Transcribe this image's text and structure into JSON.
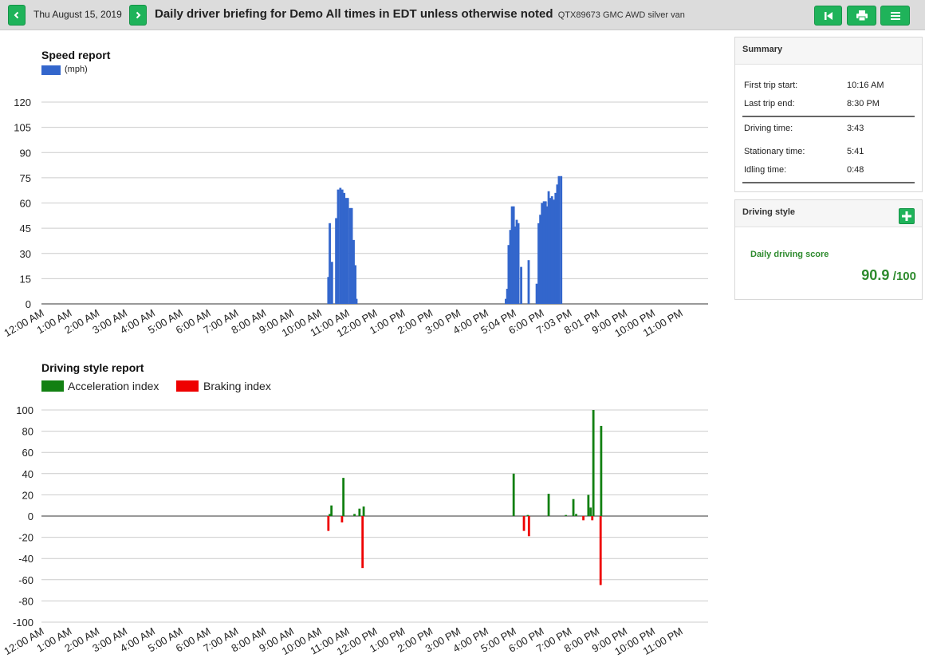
{
  "header": {
    "date": "Thu August 15, 2019",
    "title": "Daily driver briefing for Demo All times in EDT unless otherwise noted",
    "vehicle": "QTX89673 GMC AWD silver van",
    "prev_icon": "chevron-left-icon",
    "next_icon": "chevron-right-icon",
    "buttons": [
      "skip-back-icon",
      "print-icon",
      "menu-icon"
    ],
    "accent_color": "#1fb35a"
  },
  "summary": {
    "title": "Summary",
    "rows": [
      {
        "label": "First trip start:",
        "value": "10:16 AM"
      },
      {
        "label": "Last trip end:",
        "value": "8:30 PM"
      },
      {
        "label": "Driving time:",
        "value": "3:43"
      },
      {
        "label": "Stationary time:",
        "value": "5:41"
      },
      {
        "label": "Idling time:",
        "value": "0:48"
      }
    ]
  },
  "driving_style": {
    "title": "Driving style",
    "score_label": "Daily driving score",
    "score": "90.9",
    "score_max": "/100",
    "add_icon": "plus-icon"
  },
  "chart_data": [
    {
      "type": "bar",
      "title": "Speed report",
      "legend": [
        {
          "name": "(mph)",
          "color": "#3366cc"
        }
      ],
      "ylim": [
        0,
        120
      ],
      "yticks": [
        "120",
        "105",
        "90",
        "75",
        "60",
        "45",
        "30",
        "15",
        "0"
      ],
      "xticks": [
        "12:00 AM",
        "1:00 AM",
        "2:00 AM",
        "3:00 AM",
        "4:00 AM",
        "5:00 AM",
        "6:00 AM",
        "7:00 AM",
        "8:00 AM",
        "9:00 AM",
        "10:00 AM",
        "11:00 AM",
        "12:00 PM",
        "1:00 PM",
        "2:00 PM",
        "3:00 PM",
        "4:00 PM",
        "5:04 PM",
        "6:00 PM",
        "7:03 PM",
        "8:01 PM",
        "9:00 PM",
        "10:00 PM",
        "11:00 PM"
      ],
      "grid": true,
      "series": [
        {
          "name": "(mph)",
          "color": "#3366cc",
          "points": [
            [
              10.33,
              16
            ],
            [
              10.38,
              48
            ],
            [
              10.46,
              25
            ],
            [
              10.61,
              51
            ],
            [
              10.68,
              68
            ],
            [
              10.76,
              69
            ],
            [
              10.83,
              68
            ],
            [
              10.9,
              66
            ],
            [
              10.97,
              63
            ],
            [
              11.03,
              63
            ],
            [
              11.11,
              57
            ],
            [
              11.17,
              57
            ],
            [
              11.24,
              38
            ],
            [
              11.3,
              23
            ],
            [
              11.34,
              3
            ],
            [
              16.72,
              3
            ],
            [
              16.77,
              9
            ],
            [
              16.82,
              35
            ],
            [
              16.88,
              44
            ],
            [
              16.94,
              58
            ],
            [
              17.0,
              58
            ],
            [
              17.06,
              46
            ],
            [
              17.11,
              50
            ],
            [
              17.17,
              48
            ],
            [
              17.27,
              22
            ],
            [
              17.54,
              26
            ],
            [
              17.83,
              12
            ],
            [
              17.9,
              48
            ],
            [
              17.96,
              53
            ],
            [
              18.02,
              60
            ],
            [
              18.09,
              61
            ],
            [
              18.15,
              61
            ],
            [
              18.2,
              58
            ],
            [
              18.26,
              67
            ],
            [
              18.32,
              63
            ],
            [
              18.38,
              64
            ],
            [
              18.45,
              62
            ],
            [
              18.51,
              66
            ],
            [
              18.57,
              71
            ],
            [
              18.63,
              76
            ],
            [
              18.71,
              76
            ]
          ]
        }
      ]
    },
    {
      "type": "bar",
      "title": "Driving style report",
      "legend": [
        {
          "name": "Acceleration index",
          "color": "#128012"
        },
        {
          "name": "Braking index",
          "color": "#ee0000"
        }
      ],
      "ylim": [
        -100,
        100
      ],
      "yticks": [
        "100",
        "80",
        "60",
        "40",
        "20",
        "0",
        "-20",
        "-40",
        "-60",
        "-80",
        "-100"
      ],
      "xticks": [
        "12:00 AM",
        "1:00 AM",
        "2:00 AM",
        "3:00 AM",
        "4:00 AM",
        "5:00 AM",
        "6:00 AM",
        "7:00 AM",
        "8:00 AM",
        "9:00 AM",
        "10:00 AM",
        "11:00 AM",
        "12:00 PM",
        "1:00 PM",
        "2:00 PM",
        "3:00 PM",
        "4:00 PM",
        "5:00 PM",
        "6:00 PM",
        "7:00 PM",
        "8:00 PM",
        "9:00 PM",
        "10:00 PM",
        "11:00 PM"
      ],
      "grid": true,
      "series": [
        {
          "name": "Acceleration index",
          "color": "#128012",
          "points": [
            [
              10.38,
              2
            ],
            [
              10.44,
              10
            ],
            [
              10.87,
              36
            ],
            [
              11.27,
              2
            ],
            [
              11.45,
              7
            ],
            [
              11.6,
              9
            ],
            [
              17.0,
              40
            ],
            [
              17.51,
              1
            ],
            [
              18.26,
              21
            ],
            [
              18.88,
              1
            ],
            [
              19.15,
              16
            ],
            [
              19.25,
              2
            ],
            [
              19.69,
              20
            ],
            [
              19.77,
              8
            ],
            [
              19.87,
              100
            ],
            [
              20.15,
              85
            ]
          ]
        },
        {
          "name": "Braking index",
          "color": "#ee0000",
          "points": [
            [
              10.33,
              -14
            ],
            [
              10.82,
              -6
            ],
            [
              11.56,
              -49
            ],
            [
              17.37,
              -14
            ],
            [
              17.55,
              -19
            ],
            [
              19.51,
              -4
            ],
            [
              19.83,
              -4
            ],
            [
              20.13,
              -65
            ]
          ]
        }
      ]
    }
  ]
}
